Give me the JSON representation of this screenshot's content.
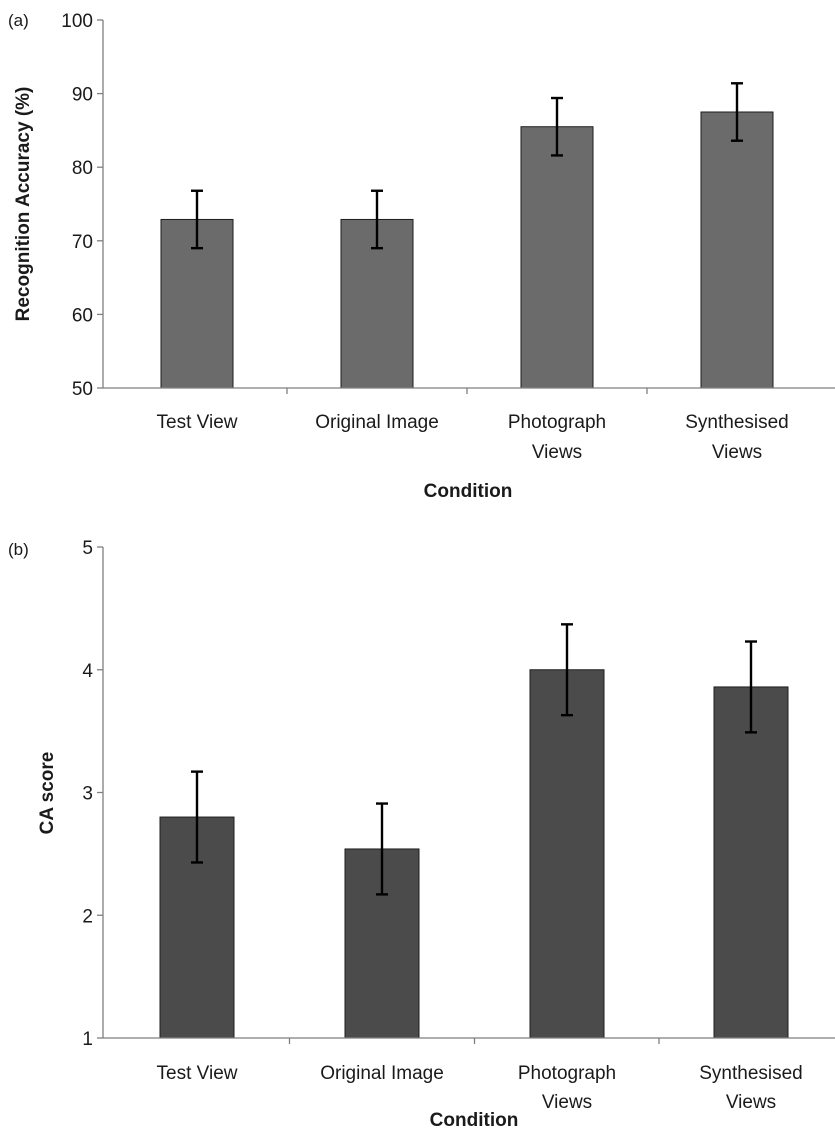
{
  "chart_data": [
    {
      "type": "bar",
      "panel_label": "(a)",
      "categories": [
        [
          "Test View"
        ],
        [
          "Original Image"
        ],
        [
          "Photograph",
          "Views"
        ],
        [
          "Synthesised",
          "Views"
        ]
      ],
      "values": [
        72.9,
        72.9,
        85.5,
        87.5
      ],
      "error": [
        3.9,
        3.9,
        3.9,
        3.9
      ],
      "xlabel": "Condition",
      "ylabel": "Recognition Accuracy (%)",
      "ylim": [
        50,
        100
      ],
      "yticks": [
        50,
        60,
        70,
        80,
        90,
        100
      ],
      "grid": false,
      "colors": {
        "bar": "#6b6b6b"
      }
    },
    {
      "type": "bar",
      "panel_label": "(b)",
      "categories": [
        [
          "Test View"
        ],
        [
          "Original Image"
        ],
        [
          "Photograph",
          "Views"
        ],
        [
          "Synthesised",
          "Views"
        ]
      ],
      "values": [
        2.8,
        2.54,
        4.0,
        3.86
      ],
      "error": [
        0.37,
        0.37,
        0.37,
        0.37
      ],
      "xlabel": "Condition",
      "ylabel": "CA score",
      "ylim": [
        1,
        5
      ],
      "yticks": [
        1,
        2,
        3,
        4,
        5
      ],
      "grid": false,
      "colors": {
        "bar": "#4b4b4b"
      }
    }
  ]
}
